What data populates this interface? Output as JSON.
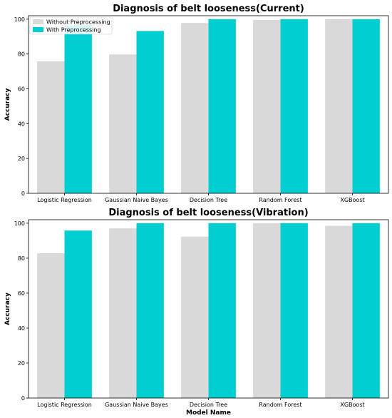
{
  "colors": {
    "without": "#d9d9d9",
    "with": "#00ced1"
  },
  "legend": {
    "without_label": "Without Preprocessing",
    "with_label": "With Preprocessing"
  },
  "chart_data": [
    {
      "type": "bar",
      "title": "Diagnosis of belt looseness(Current)",
      "xlabel": "",
      "ylabel": "Accuracy",
      "ylim": [
        0,
        102
      ],
      "yticks": [
        0,
        20,
        40,
        60,
        80,
        100
      ],
      "legend_position": "top-left",
      "categories": [
        "Logistic Regression",
        "Gaussian Naive Bayes",
        "Decision Tree",
        "Random Forest",
        "XGBoost"
      ],
      "series": [
        {
          "name": "Without Preprocessing",
          "values": [
            75.8,
            79.8,
            97.8,
            99.6,
            100
          ]
        },
        {
          "name": "With Preprocessing",
          "values": [
            96.5,
            93.2,
            100,
            100,
            100
          ]
        }
      ]
    },
    {
      "type": "bar",
      "title": "Diagnosis of belt looseness(Vibration)",
      "xlabel": "Model Name",
      "ylabel": "Accuracy",
      "ylim": [
        0,
        102
      ],
      "yticks": [
        0,
        20,
        40,
        60,
        80,
        100
      ],
      "categories": [
        "Logistic Regression",
        "Gaussian Naive Bayes",
        "Decision Tree",
        "Random Forest",
        "XGBoost"
      ],
      "series": [
        {
          "name": "Without Preprocessing",
          "values": [
            82.8,
            97,
            92.3,
            100,
            98.5
          ]
        },
        {
          "name": "With Preprocessing",
          "values": [
            95.8,
            100,
            100,
            100,
            100
          ]
        }
      ]
    }
  ]
}
